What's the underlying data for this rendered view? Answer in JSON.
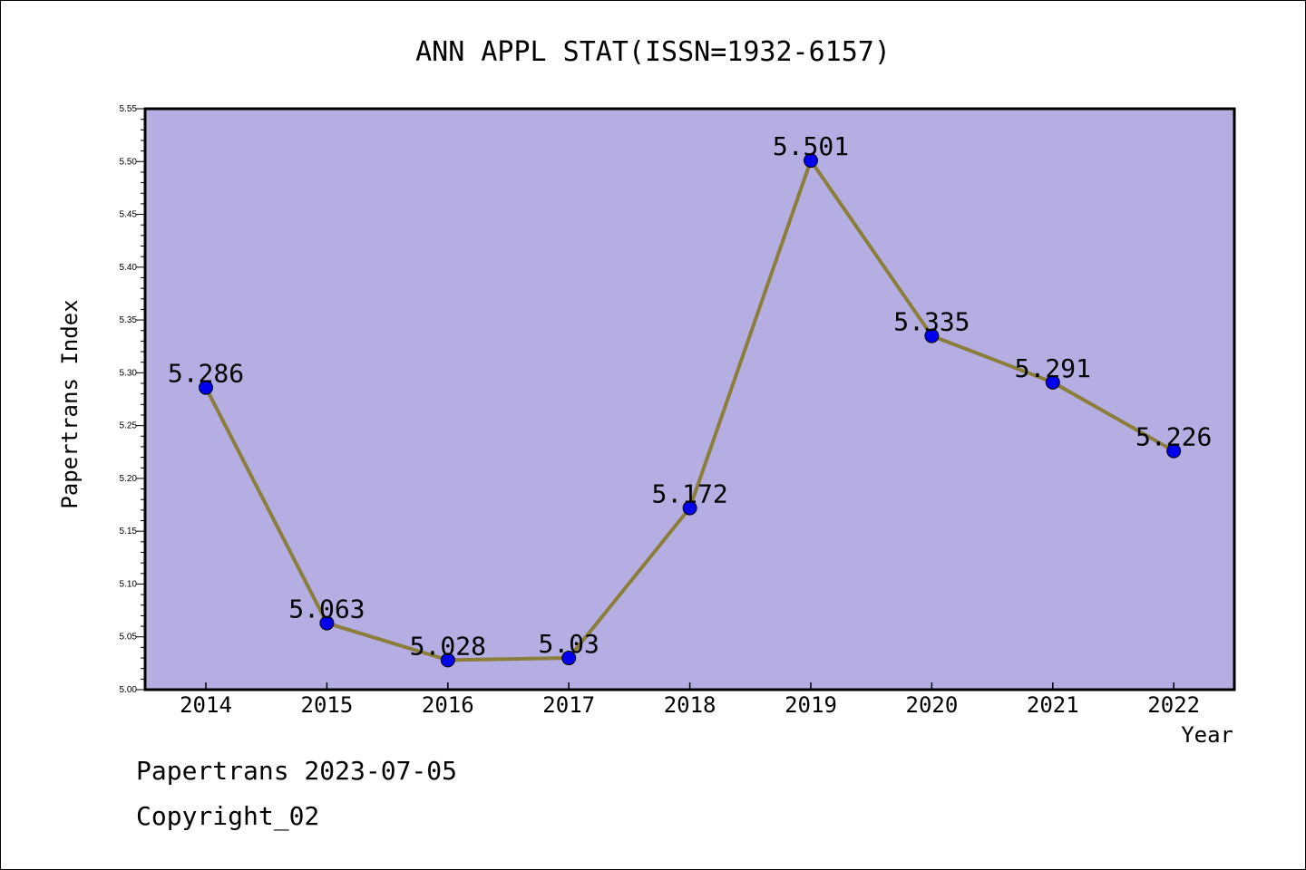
{
  "chart_data": {
    "type": "line",
    "title": "ANN APPL STAT(ISSN=1932-6157)",
    "xlabel": "Year",
    "ylabel": "Papertrans Index",
    "categories": [
      "2014",
      "2015",
      "2016",
      "2017",
      "2018",
      "2019",
      "2020",
      "2021",
      "2022"
    ],
    "values": [
      5.286,
      5.063,
      5.028,
      5.03,
      5.172,
      5.501,
      5.335,
      5.291,
      5.226
    ],
    "data_labels": [
      "5.286",
      "5.063",
      "5.028",
      "5.03",
      "5.172",
      "5.501",
      "5.335",
      "5.291",
      "5.226"
    ],
    "ylim": [
      5.0,
      5.55
    ],
    "yticks": [
      "5.00",
      "5.05",
      "5.10",
      "5.15",
      "5.20",
      "5.25",
      "5.30",
      "5.35",
      "5.40",
      "5.45",
      "5.50",
      "5.55"
    ],
    "grid": false,
    "colors": {
      "plot_bg": "#b4aee2",
      "line": "#8b7d3a",
      "marker": "#0000ee"
    }
  },
  "footer": {
    "line1": "Papertrans 2023-07-05",
    "line2": "Copyright_02"
  }
}
